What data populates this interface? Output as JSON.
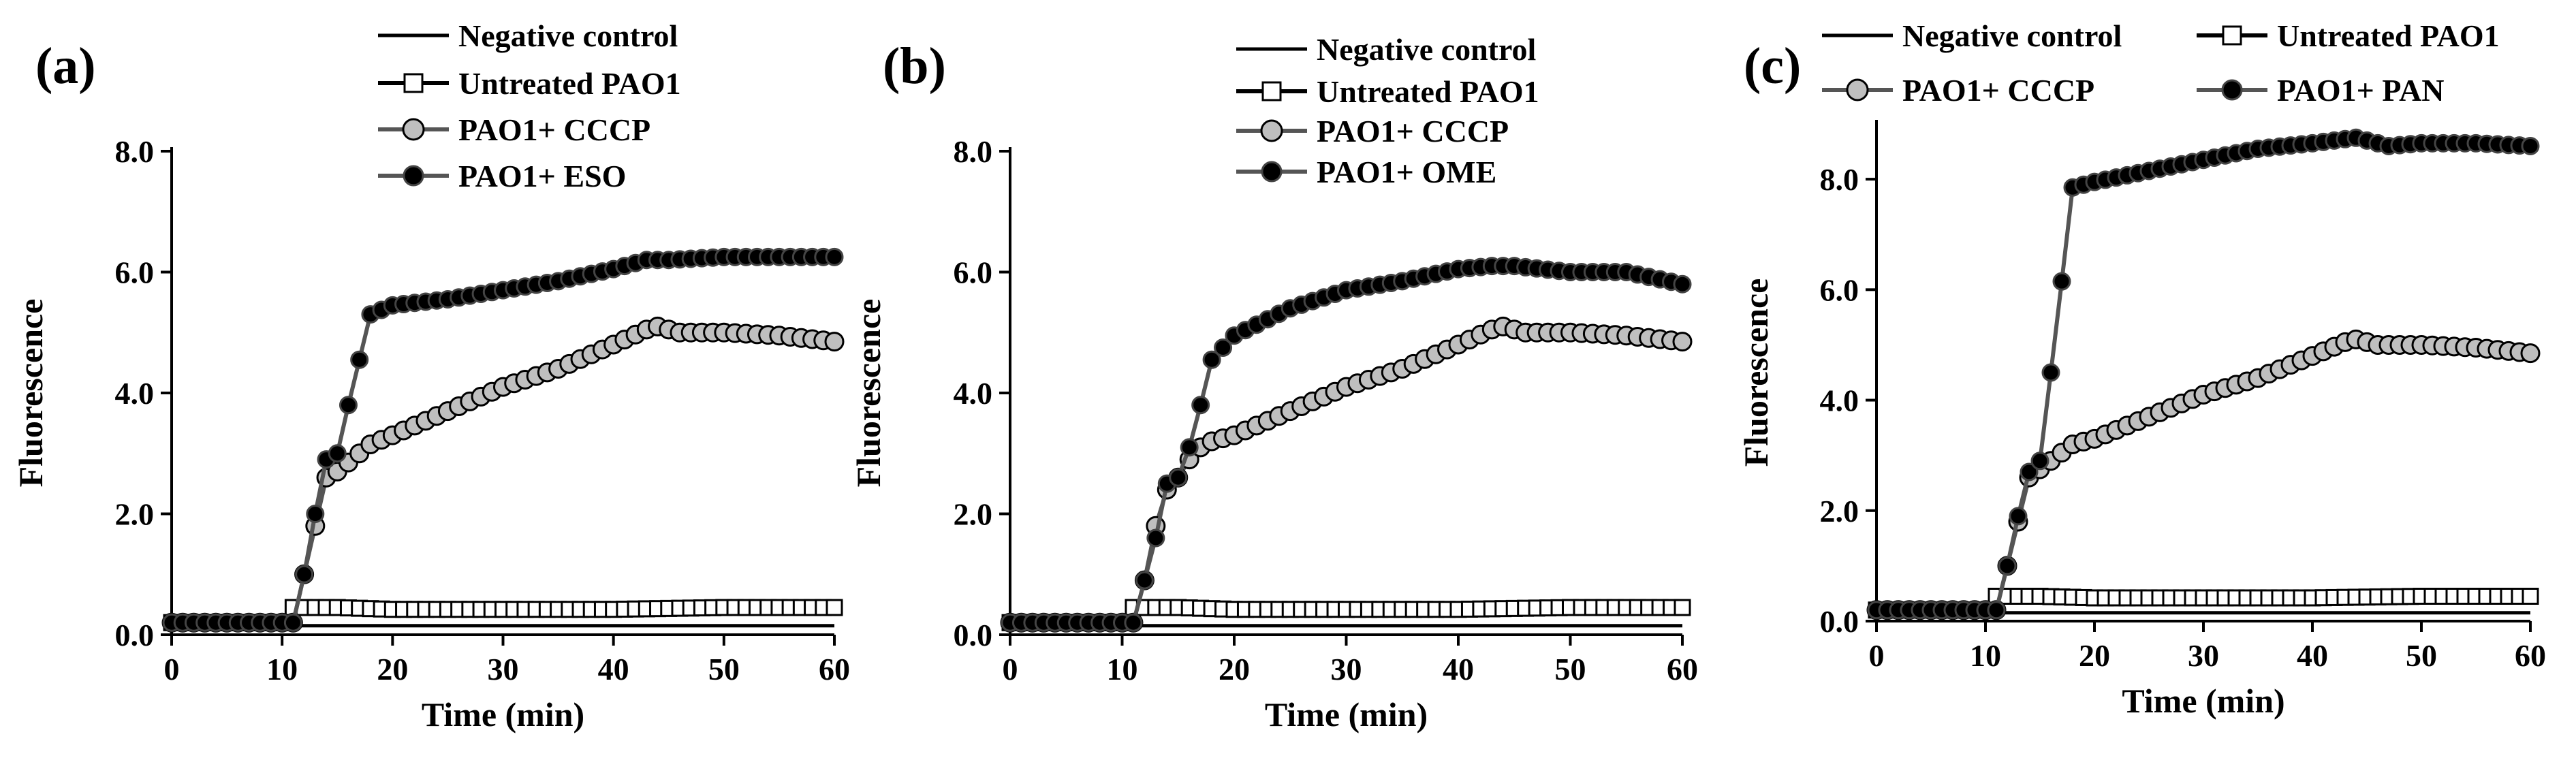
{
  "chart_data": [
    {
      "type": "line",
      "panel_label": "(a)",
      "title": "",
      "xlabel": "Time (min)",
      "ylabel": "Fluorescence",
      "xlim": [
        0,
        60
      ],
      "ylim": [
        0,
        8
      ],
      "x_ticks": [
        0,
        10,
        20,
        30,
        40,
        50,
        60
      ],
      "y_ticks": [
        0,
        2,
        4,
        6,
        8
      ],
      "x_tick_labels": [
        "0",
        "10",
        "20",
        "30",
        "40",
        "50",
        "60"
      ],
      "y_tick_labels": [
        "0.0",
        "2.0",
        "4.0",
        "6.0",
        "8.0"
      ],
      "grid": false,
      "legend_position": "top",
      "series": [
        {
          "name": "Negative control",
          "style": "line",
          "color": "#000000",
          "points": [
            [
              0,
              0.15
            ],
            [
              60,
              0.15
            ]
          ]
        },
        {
          "name": "Untreated PAO1",
          "style": "square",
          "color": "#000000",
          "points": [
            [
              0,
              0.2
            ],
            [
              10,
              0.2
            ],
            [
              11,
              0.45
            ],
            [
              15,
              0.45
            ],
            [
              20,
              0.42
            ],
            [
              30,
              0.42
            ],
            [
              40,
              0.42
            ],
            [
              50,
              0.45
            ],
            [
              60,
              0.45
            ]
          ]
        },
        {
          "name": "PAO1+ CCCP",
          "style": "circle",
          "color": "#555555",
          "points": [
            [
              0,
              0.2
            ],
            [
              10,
              0.2
            ],
            [
              11,
              0.2
            ],
            [
              12,
              1.0
            ],
            [
              13,
              1.8
            ],
            [
              14,
              2.6
            ],
            [
              15,
              2.7
            ],
            [
              16,
              2.85
            ],
            [
              17,
              3.0
            ],
            [
              18,
              3.15
            ],
            [
              20,
              3.3
            ],
            [
              25,
              3.7
            ],
            [
              30,
              4.1
            ],
            [
              35,
              4.4
            ],
            [
              40,
              4.8
            ],
            [
              43,
              5.05
            ],
            [
              44,
              5.1
            ],
            [
              46,
              5.0
            ],
            [
              50,
              5.0
            ],
            [
              55,
              4.95
            ],
            [
              60,
              4.85
            ]
          ]
        },
        {
          "name": "PAO1+ ESO",
          "style": "circle-filled",
          "color": "#555555",
          "points": [
            [
              0,
              0.2
            ],
            [
              10,
              0.2
            ],
            [
              11,
              0.2
            ],
            [
              12,
              1.0
            ],
            [
              13,
              2.0
            ],
            [
              14,
              2.9
            ],
            [
              15,
              3.0
            ],
            [
              16,
              3.8
            ],
            [
              17,
              4.55
            ],
            [
              18,
              5.3
            ],
            [
              20,
              5.45
            ],
            [
              25,
              5.55
            ],
            [
              30,
              5.7
            ],
            [
              35,
              5.85
            ],
            [
              40,
              6.05
            ],
            [
              43,
              6.2
            ],
            [
              45,
              6.2
            ],
            [
              50,
              6.25
            ],
            [
              55,
              6.25
            ],
            [
              60,
              6.25
            ]
          ]
        }
      ]
    },
    {
      "type": "line",
      "panel_label": "(b)",
      "title": "",
      "xlabel": "Time (min)",
      "ylabel": "Fluorescence",
      "xlim": [
        0,
        60
      ],
      "ylim": [
        0,
        8
      ],
      "x_ticks": [
        0,
        10,
        20,
        30,
        40,
        50,
        60
      ],
      "y_ticks": [
        0,
        2,
        4,
        6,
        8
      ],
      "x_tick_labels": [
        "0",
        "10",
        "20",
        "30",
        "40",
        "50",
        "60"
      ],
      "y_tick_labels": [
        "0.0",
        "2.0",
        "4.0",
        "6.0",
        "8.0"
      ],
      "grid": false,
      "legend_position": "top",
      "series": [
        {
          "name": "Negative control",
          "style": "line",
          "color": "#000000",
          "points": [
            [
              0,
              0.15
            ],
            [
              60,
              0.15
            ]
          ]
        },
        {
          "name": "Untreated PAO1",
          "style": "square",
          "color": "#000000",
          "points": [
            [
              0,
              0.2
            ],
            [
              10,
              0.2
            ],
            [
              11,
              0.45
            ],
            [
              15,
              0.45
            ],
            [
              20,
              0.42
            ],
            [
              30,
              0.42
            ],
            [
              40,
              0.42
            ],
            [
              50,
              0.45
            ],
            [
              60,
              0.45
            ]
          ]
        },
        {
          "name": "PAO1+ CCCP",
          "style": "circle",
          "color": "#555555",
          "points": [
            [
              0,
              0.2
            ],
            [
              10,
              0.2
            ],
            [
              11,
              0.2
            ],
            [
              12,
              0.9
            ],
            [
              13,
              1.8
            ],
            [
              14,
              2.4
            ],
            [
              15,
              2.6
            ],
            [
              16,
              2.9
            ],
            [
              17,
              3.1
            ],
            [
              18,
              3.2
            ],
            [
              20,
              3.3
            ],
            [
              25,
              3.7
            ],
            [
              30,
              4.1
            ],
            [
              35,
              4.4
            ],
            [
              40,
              4.8
            ],
            [
              43,
              5.05
            ],
            [
              44,
              5.1
            ],
            [
              46,
              5.0
            ],
            [
              50,
              5.0
            ],
            [
              55,
              4.95
            ],
            [
              60,
              4.85
            ]
          ]
        },
        {
          "name": "PAO1+ OME",
          "style": "circle-filled",
          "color": "#555555",
          "points": [
            [
              0,
              0.2
            ],
            [
              10,
              0.2
            ],
            [
              11,
              0.2
            ],
            [
              12,
              0.9
            ],
            [
              13,
              1.6
            ],
            [
              14,
              2.5
            ],
            [
              15,
              2.6
            ],
            [
              16,
              3.1
            ],
            [
              17,
              3.8
            ],
            [
              18,
              4.55
            ],
            [
              20,
              4.95
            ],
            [
              25,
              5.4
            ],
            [
              30,
              5.7
            ],
            [
              35,
              5.85
            ],
            [
              40,
              6.05
            ],
            [
              43,
              6.1
            ],
            [
              45,
              6.1
            ],
            [
              50,
              6.0
            ],
            [
              55,
              6.0
            ],
            [
              60,
              5.8
            ]
          ]
        }
      ]
    },
    {
      "type": "line",
      "panel_label": "(c)",
      "title": "",
      "xlabel": "Time (min)",
      "ylabel": "Fluorescence",
      "xlim": [
        0,
        60
      ],
      "ylim": [
        0,
        9
      ],
      "x_ticks": [
        0,
        10,
        20,
        30,
        40,
        50,
        60
      ],
      "y_ticks": [
        0,
        2,
        4,
        6,
        8
      ],
      "x_tick_labels": [
        "0",
        "10",
        "20",
        "30",
        "40",
        "50",
        "60"
      ],
      "y_tick_labels": [
        "0.0",
        "2.0",
        "4.0",
        "6.0",
        "8.0"
      ],
      "grid": false,
      "legend_position": "top",
      "series": [
        {
          "name": "Negative control",
          "style": "line",
          "color": "#000000",
          "points": [
            [
              0,
              0.15
            ],
            [
              60,
              0.15
            ]
          ]
        },
        {
          "name": "Untreated PAO1",
          "style": "square",
          "color": "#000000",
          "points": [
            [
              0,
              0.2
            ],
            [
              10,
              0.2
            ],
            [
              11,
              0.45
            ],
            [
              15,
              0.45
            ],
            [
              20,
              0.42
            ],
            [
              30,
              0.42
            ],
            [
              40,
              0.42
            ],
            [
              50,
              0.45
            ],
            [
              60,
              0.45
            ]
          ]
        },
        {
          "name": "PAO1+ CCCP",
          "style": "circle",
          "color": "#555555",
          "points": [
            [
              0,
              0.2
            ],
            [
              10,
              0.2
            ],
            [
              11,
              0.2
            ],
            [
              12,
              1.0
            ],
            [
              13,
              1.8
            ],
            [
              14,
              2.6
            ],
            [
              15,
              2.75
            ],
            [
              16,
              2.9
            ],
            [
              17,
              3.05
            ],
            [
              18,
              3.2
            ],
            [
              20,
              3.3
            ],
            [
              25,
              3.7
            ],
            [
              30,
              4.1
            ],
            [
              35,
              4.4
            ],
            [
              40,
              4.8
            ],
            [
              43,
              5.05
            ],
            [
              44,
              5.1
            ],
            [
              46,
              5.0
            ],
            [
              50,
              5.0
            ],
            [
              55,
              4.95
            ],
            [
              60,
              4.85
            ]
          ]
        },
        {
          "name": "PAO1+ PAN",
          "style": "circle-filled",
          "color": "#555555",
          "points": [
            [
              0,
              0.2
            ],
            [
              10,
              0.2
            ],
            [
              11,
              0.2
            ],
            [
              12,
              1.0
            ],
            [
              13,
              1.9
            ],
            [
              14,
              2.7
            ],
            [
              15,
              2.9
            ],
            [
              16,
              4.5
            ],
            [
              17,
              6.15
            ],
            [
              18,
              7.85
            ],
            [
              20,
              7.95
            ],
            [
              25,
              8.15
            ],
            [
              30,
              8.35
            ],
            [
              35,
              8.55
            ],
            [
              40,
              8.65
            ],
            [
              44,
              8.75
            ],
            [
              47,
              8.6
            ],
            [
              50,
              8.65
            ],
            [
              55,
              8.65
            ],
            [
              60,
              8.6
            ]
          ]
        }
      ]
    }
  ]
}
